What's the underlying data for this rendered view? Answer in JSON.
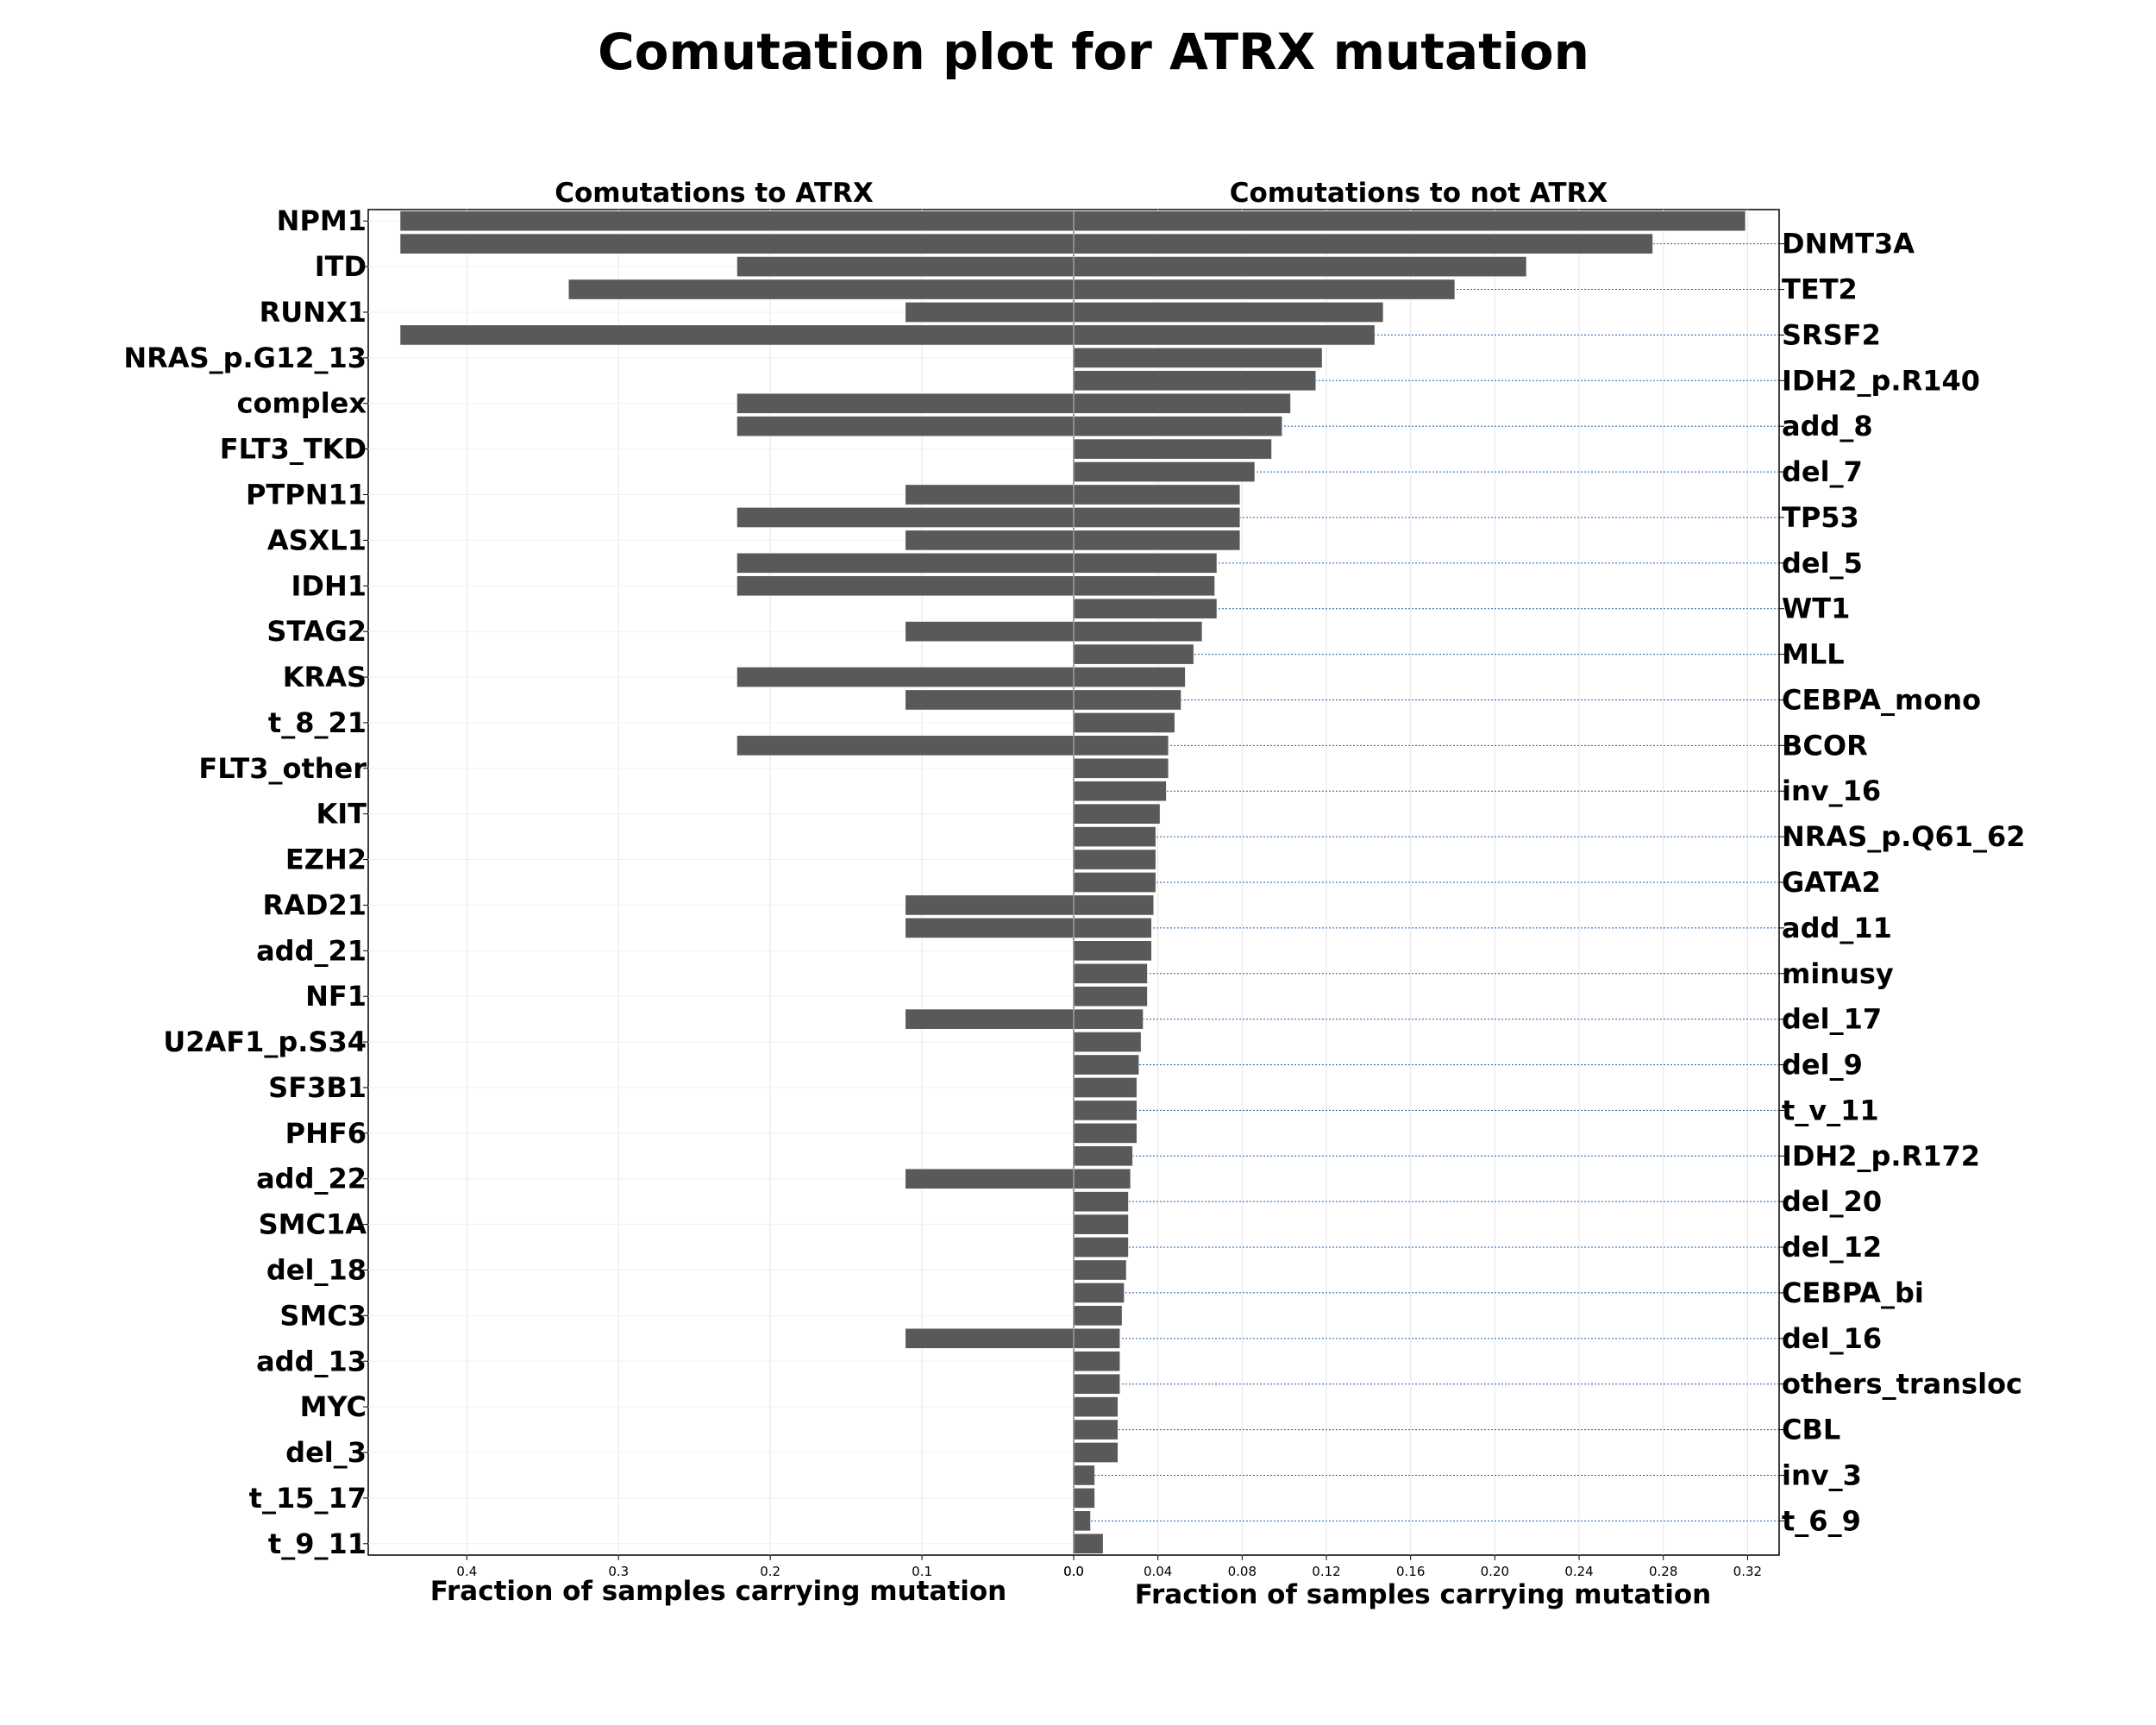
{
  "chart_data": {
    "type": "bar",
    "orientation": "horizontal",
    "title": "Comutation plot for ATRX mutation",
    "bar_color": "#595959",
    "grid": true,
    "panels": [
      {
        "title": "Comutations to ATRX",
        "xlabel": "Fraction of samples carrying mutation",
        "xlim": [
          0.465,
          0
        ],
        "xticks": [
          0.4,
          0.3,
          0.2,
          0.1,
          0.0
        ],
        "xtick_labels": [
          "0.4",
          "0.3",
          "0.2",
          "0.1",
          "0.0"
        ],
        "labeled_categories": [
          "NPM1",
          "ITD",
          "RUNX1",
          "NRAS_p.G12_13",
          "complex",
          "FLT3_TKD",
          "PTPN11",
          "ASXL1",
          "IDH1",
          "STAG2",
          "KRAS",
          "t_8_21",
          "FLT3_other",
          "KIT",
          "EZH2",
          "RAD21",
          "add_21",
          "NF1",
          "U2AF1_p.S34",
          "SF3B1",
          "PHF6",
          "add_22",
          "SMC1A",
          "del_18",
          "SMC3",
          "add_13",
          "MYC",
          "del_3",
          "t_15_17",
          "t_9_11"
        ],
        "values": [
          0.444,
          0.444,
          0.222,
          0.333,
          0.111,
          0.444,
          0.0,
          0.0,
          0.222,
          0.222,
          0.0,
          0.0,
          0.111,
          0.222,
          0.111,
          0.222,
          0.222,
          0.0,
          0.111,
          0.0,
          0.222,
          0.111,
          0.0,
          0.222,
          0.0,
          0.0,
          0.0,
          0.0,
          0.0,
          0.0,
          0.111,
          0.111,
          0.0,
          0.0,
          0.0,
          0.111,
          0.0,
          0.0,
          0.0,
          0.0,
          0.0,
          0.0,
          0.111,
          0.0,
          0.0,
          0.0,
          0.0,
          0.0,
          0.0,
          0.111,
          0.0,
          0.0,
          0.0,
          0.0,
          0.0,
          0.0,
          0.0,
          0.0,
          0.0
        ]
      },
      {
        "title": "Comutations to not ATRX",
        "xlabel": "Fraction of samples carrying mutation",
        "xlim": [
          0,
          0.335
        ],
        "xticks": [
          0.0,
          0.04,
          0.08,
          0.12,
          0.16,
          0.2,
          0.24,
          0.28,
          0.32
        ],
        "xtick_labels": [
          "0.0",
          "0.04",
          "0.08",
          "0.12",
          "0.16",
          "0.20",
          "0.24",
          "0.28",
          "0.32"
        ],
        "labeled_categories": [
          "DNMT3A",
          "TET2",
          "SRSF2",
          "IDH2_p.R140",
          "add_8",
          "del_7",
          "TP53",
          "del_5",
          "WT1",
          "MLL",
          "CEBPA_mono",
          "BCOR",
          "inv_16",
          "NRAS_p.Q61_62",
          "GATA2",
          "add_11",
          "minusy",
          "del_17",
          "del_9",
          "t_v_11",
          "IDH2_p.R172",
          "del_20",
          "del_12",
          "CEBPA_bi",
          "del_16",
          "others_transloc",
          "CBL",
          "inv_3",
          "t_6_9"
        ],
        "values": [
          0.319,
          0.275,
          0.215,
          0.181,
          0.147,
          0.143,
          0.118,
          0.115,
          0.103,
          0.099,
          0.094,
          0.086,
          0.079,
          0.079,
          0.079,
          0.068,
          0.067,
          0.068,
          0.061,
          0.057,
          0.053,
          0.051,
          0.048,
          0.045,
          0.045,
          0.044,
          0.041,
          0.039,
          0.039,
          0.039,
          0.038,
          0.037,
          0.037,
          0.035,
          0.035,
          0.033,
          0.032,
          0.031,
          0.03,
          0.03,
          0.03,
          0.028,
          0.027,
          0.026,
          0.026,
          0.026,
          0.025,
          0.024,
          0.023,
          0.022,
          0.022,
          0.022,
          0.021,
          0.021,
          0.021,
          0.01,
          0.01,
          0.008,
          0.014
        ]
      }
    ]
  }
}
